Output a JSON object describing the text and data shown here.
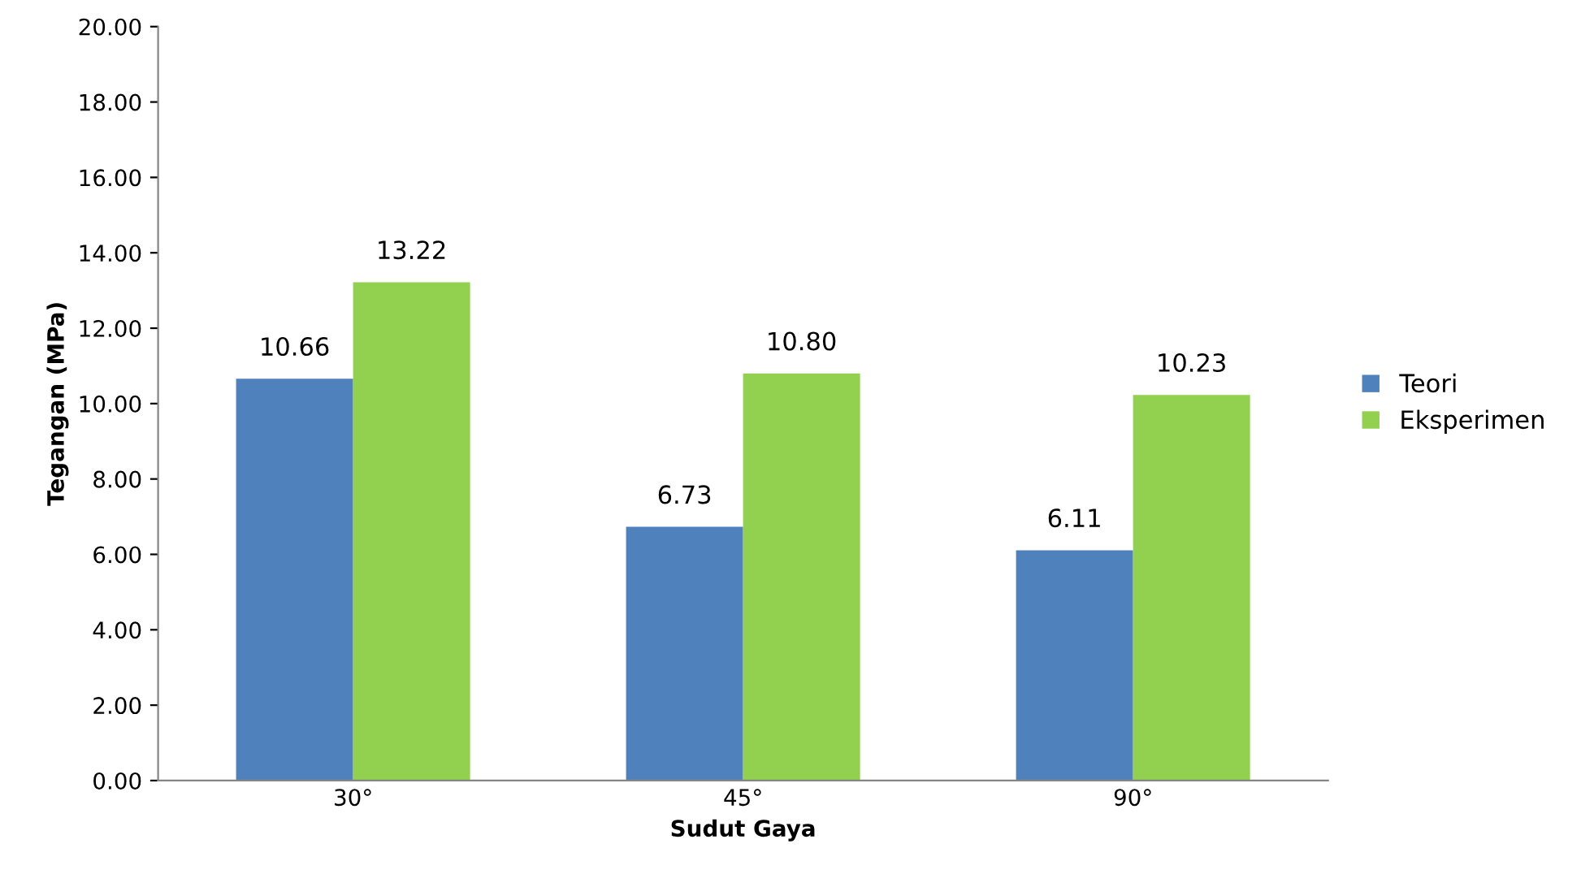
{
  "chart_data": {
    "type": "bar",
    "xlabel": "Sudut Gaya",
    "ylabel": "Tegangan (MPa)",
    "categories": [
      "30°",
      "45°",
      "90°"
    ],
    "series": [
      {
        "name": "Teori",
        "color": "#4f81bd",
        "values": [
          10.66,
          6.73,
          6.11
        ],
        "value_labels": [
          "10.66",
          "6.73",
          "6.11"
        ]
      },
      {
        "name": "Eksperimen",
        "color": "#92d050",
        "values": [
          13.22,
          10.8,
          10.23
        ],
        "value_labels": [
          "13.22",
          "10.80",
          "10.23"
        ]
      }
    ],
    "ylim": [
      0,
      20
    ],
    "yticks": [
      {
        "value": 0,
        "label": "0.00"
      },
      {
        "value": 2,
        "label": "2.00"
      },
      {
        "value": 4,
        "label": "4.00"
      },
      {
        "value": 6,
        "label": "6.00"
      },
      {
        "value": 8,
        "label": "8.00"
      },
      {
        "value": 10,
        "label": "10.00"
      },
      {
        "value": 12,
        "label": "12.00"
      },
      {
        "value": 14,
        "label": "14.00"
      },
      {
        "value": 16,
        "label": "16.00"
      },
      {
        "value": 18,
        "label": "18.00"
      },
      {
        "value": 20,
        "label": "20.00"
      }
    ],
    "grid": false,
    "legend": "right"
  }
}
